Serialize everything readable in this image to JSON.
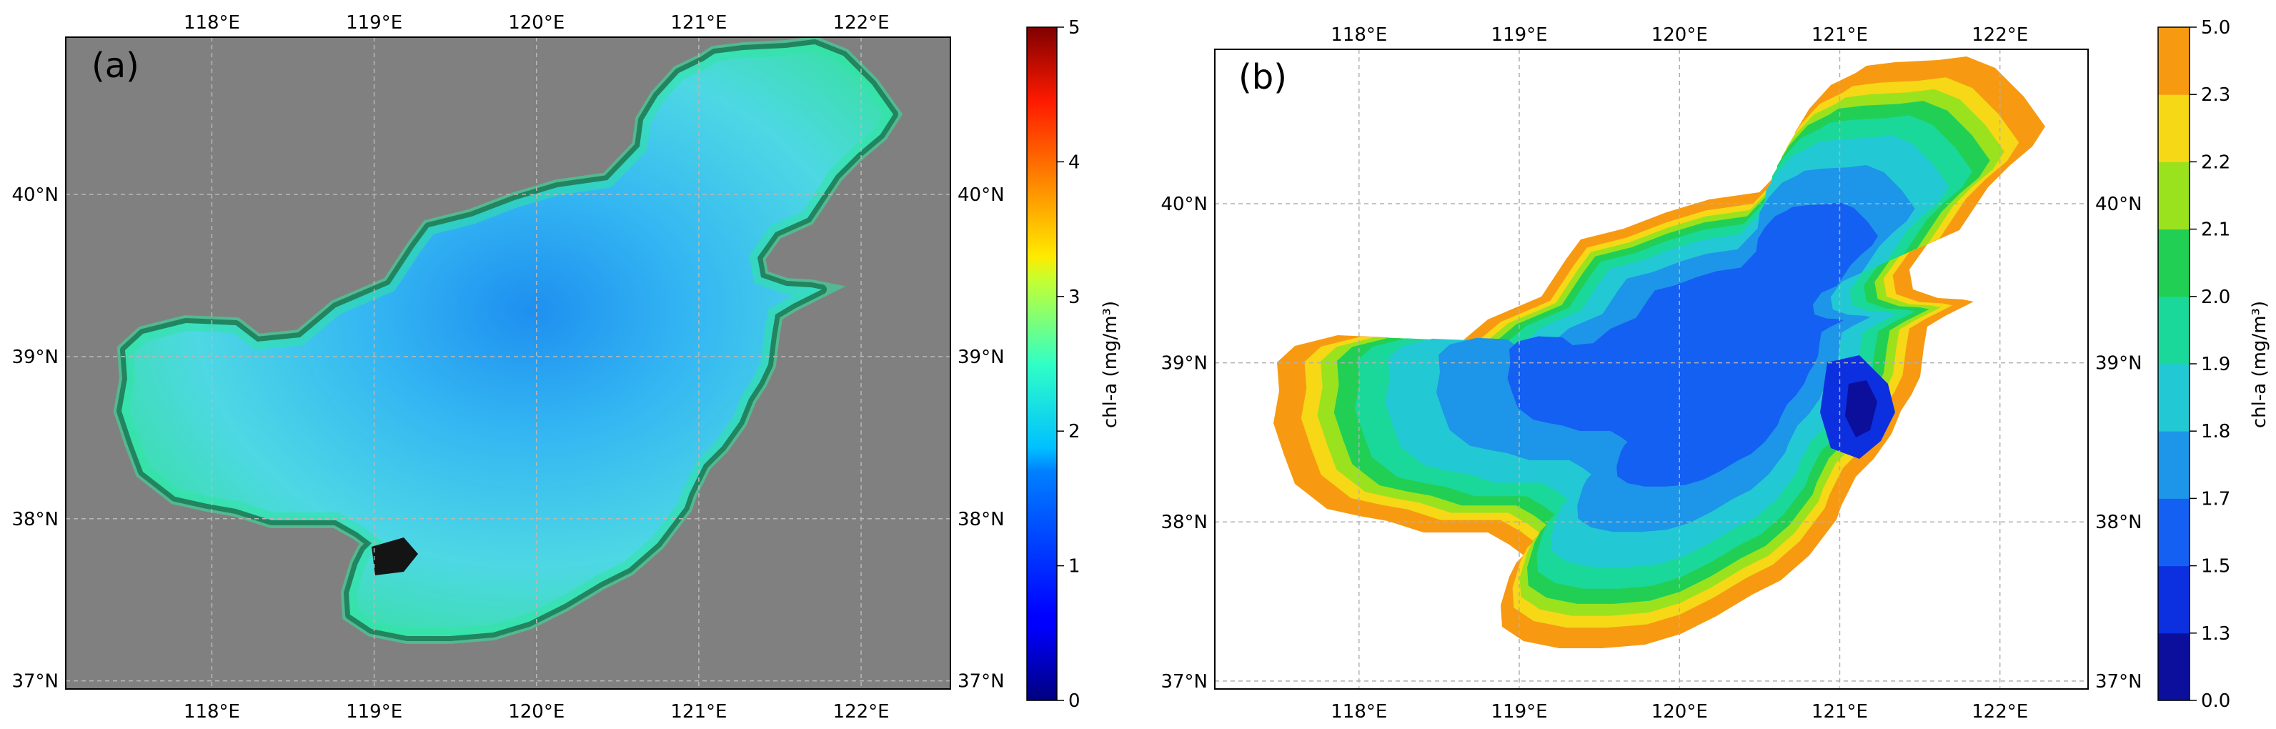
{
  "panels": [
    {
      "id": "a",
      "label": "(a)",
      "lon_ticks": [
        "118°E",
        "119°E",
        "120°E",
        "121°E",
        "122°E"
      ],
      "lat_ticks": [
        "40°N",
        "39°N",
        "38°N",
        "37°N"
      ],
      "lon_values": [
        118,
        119,
        120,
        121,
        122
      ],
      "lat_values": [
        40,
        39,
        38,
        37
      ],
      "lon_range": [
        117.1,
        122.55
      ],
      "lat_range": [
        36.95,
        40.97
      ],
      "background": "#808080",
      "colorbar": {
        "type": "continuous",
        "label": "chl-a (mg/m³)",
        "ticks": [
          "0",
          "1",
          "2",
          "3",
          "4",
          "5"
        ],
        "tick_values": [
          0,
          1,
          2,
          3,
          4,
          5
        ],
        "range": [
          0,
          5
        ],
        "colormap": "jet"
      }
    },
    {
      "id": "b",
      "label": "(b)",
      "lon_ticks": [
        "118°E",
        "119°E",
        "120°E",
        "121°E",
        "122°E"
      ],
      "lat_ticks": [
        "40°N",
        "39°N",
        "38°N",
        "37°N"
      ],
      "lon_values": [
        118,
        119,
        120,
        121,
        122
      ],
      "lat_values": [
        40,
        39,
        38,
        37
      ],
      "lon_range": [
        117.1,
        122.55
      ],
      "lat_range": [
        36.95,
        40.97
      ],
      "background": "#ffffff",
      "colorbar": {
        "type": "discrete",
        "label": "chl-a (mg/m³)",
        "ticks": [
          "0.0",
          "1.3",
          "1.5",
          "1.7",
          "1.8",
          "1.9",
          "2.0",
          "2.1",
          "2.2",
          "2.3",
          "5.0"
        ],
        "colors": [
          "#0b0f9c",
          "#0c2fe0",
          "#1460f2",
          "#1d95e8",
          "#22c9d4",
          "#1ad89a",
          "#22cf55",
          "#9be21e",
          "#f6d816",
          "#f79a12"
        ]
      }
    }
  ]
}
